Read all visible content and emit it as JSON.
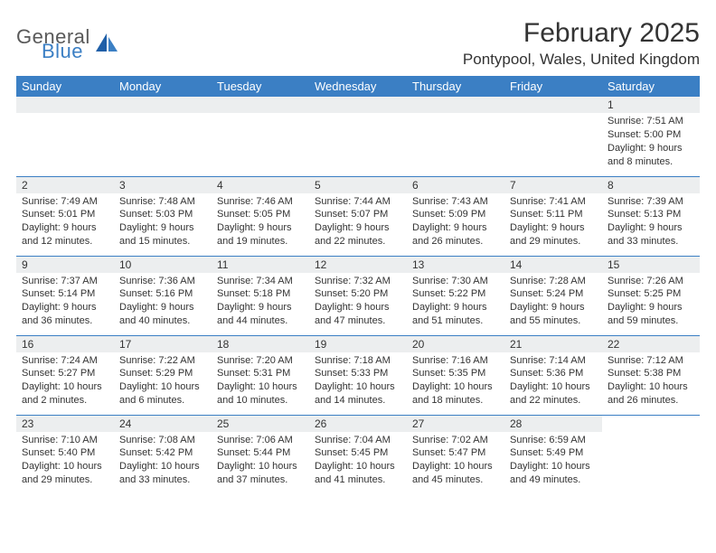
{
  "brand": {
    "top": "General",
    "bottom": "Blue",
    "color_top": "#595959",
    "color_bottom": "#3b7fc4"
  },
  "title": "February 2025",
  "location": "Pontypool, Wales, United Kingdom",
  "colors": {
    "header_bg": "#3b7fc4",
    "header_text": "#ffffff",
    "daynum_bg": "#eceeef",
    "rule": "#3b7fc4",
    "text": "#333333",
    "page_bg": "#ffffff"
  },
  "fonts": {
    "title_size_pt": 30,
    "location_size_pt": 17,
    "th_size_pt": 13,
    "daynum_size_pt": 12,
    "body_size_pt": 11
  },
  "dow": [
    "Sunday",
    "Monday",
    "Tuesday",
    "Wednesday",
    "Thursday",
    "Friday",
    "Saturday"
  ],
  "weeks": [
    [
      null,
      null,
      null,
      null,
      null,
      null,
      {
        "n": "1",
        "sr": "Sunrise: 7:51 AM",
        "ss": "Sunset: 5:00 PM",
        "d1": "Daylight: 9 hours",
        "d2": "and 8 minutes."
      }
    ],
    [
      {
        "n": "2",
        "sr": "Sunrise: 7:49 AM",
        "ss": "Sunset: 5:01 PM",
        "d1": "Daylight: 9 hours",
        "d2": "and 12 minutes."
      },
      {
        "n": "3",
        "sr": "Sunrise: 7:48 AM",
        "ss": "Sunset: 5:03 PM",
        "d1": "Daylight: 9 hours",
        "d2": "and 15 minutes."
      },
      {
        "n": "4",
        "sr": "Sunrise: 7:46 AM",
        "ss": "Sunset: 5:05 PM",
        "d1": "Daylight: 9 hours",
        "d2": "and 19 minutes."
      },
      {
        "n": "5",
        "sr": "Sunrise: 7:44 AM",
        "ss": "Sunset: 5:07 PM",
        "d1": "Daylight: 9 hours",
        "d2": "and 22 minutes."
      },
      {
        "n": "6",
        "sr": "Sunrise: 7:43 AM",
        "ss": "Sunset: 5:09 PM",
        "d1": "Daylight: 9 hours",
        "d2": "and 26 minutes."
      },
      {
        "n": "7",
        "sr": "Sunrise: 7:41 AM",
        "ss": "Sunset: 5:11 PM",
        "d1": "Daylight: 9 hours",
        "d2": "and 29 minutes."
      },
      {
        "n": "8",
        "sr": "Sunrise: 7:39 AM",
        "ss": "Sunset: 5:13 PM",
        "d1": "Daylight: 9 hours",
        "d2": "and 33 minutes."
      }
    ],
    [
      {
        "n": "9",
        "sr": "Sunrise: 7:37 AM",
        "ss": "Sunset: 5:14 PM",
        "d1": "Daylight: 9 hours",
        "d2": "and 36 minutes."
      },
      {
        "n": "10",
        "sr": "Sunrise: 7:36 AM",
        "ss": "Sunset: 5:16 PM",
        "d1": "Daylight: 9 hours",
        "d2": "and 40 minutes."
      },
      {
        "n": "11",
        "sr": "Sunrise: 7:34 AM",
        "ss": "Sunset: 5:18 PM",
        "d1": "Daylight: 9 hours",
        "d2": "and 44 minutes."
      },
      {
        "n": "12",
        "sr": "Sunrise: 7:32 AM",
        "ss": "Sunset: 5:20 PM",
        "d1": "Daylight: 9 hours",
        "d2": "and 47 minutes."
      },
      {
        "n": "13",
        "sr": "Sunrise: 7:30 AM",
        "ss": "Sunset: 5:22 PM",
        "d1": "Daylight: 9 hours",
        "d2": "and 51 minutes."
      },
      {
        "n": "14",
        "sr": "Sunrise: 7:28 AM",
        "ss": "Sunset: 5:24 PM",
        "d1": "Daylight: 9 hours",
        "d2": "and 55 minutes."
      },
      {
        "n": "15",
        "sr": "Sunrise: 7:26 AM",
        "ss": "Sunset: 5:25 PM",
        "d1": "Daylight: 9 hours",
        "d2": "and 59 minutes."
      }
    ],
    [
      {
        "n": "16",
        "sr": "Sunrise: 7:24 AM",
        "ss": "Sunset: 5:27 PM",
        "d1": "Daylight: 10 hours",
        "d2": "and 2 minutes."
      },
      {
        "n": "17",
        "sr": "Sunrise: 7:22 AM",
        "ss": "Sunset: 5:29 PM",
        "d1": "Daylight: 10 hours",
        "d2": "and 6 minutes."
      },
      {
        "n": "18",
        "sr": "Sunrise: 7:20 AM",
        "ss": "Sunset: 5:31 PM",
        "d1": "Daylight: 10 hours",
        "d2": "and 10 minutes."
      },
      {
        "n": "19",
        "sr": "Sunrise: 7:18 AM",
        "ss": "Sunset: 5:33 PM",
        "d1": "Daylight: 10 hours",
        "d2": "and 14 minutes."
      },
      {
        "n": "20",
        "sr": "Sunrise: 7:16 AM",
        "ss": "Sunset: 5:35 PM",
        "d1": "Daylight: 10 hours",
        "d2": "and 18 minutes."
      },
      {
        "n": "21",
        "sr": "Sunrise: 7:14 AM",
        "ss": "Sunset: 5:36 PM",
        "d1": "Daylight: 10 hours",
        "d2": "and 22 minutes."
      },
      {
        "n": "22",
        "sr": "Sunrise: 7:12 AM",
        "ss": "Sunset: 5:38 PM",
        "d1": "Daylight: 10 hours",
        "d2": "and 26 minutes."
      }
    ],
    [
      {
        "n": "23",
        "sr": "Sunrise: 7:10 AM",
        "ss": "Sunset: 5:40 PM",
        "d1": "Daylight: 10 hours",
        "d2": "and 29 minutes."
      },
      {
        "n": "24",
        "sr": "Sunrise: 7:08 AM",
        "ss": "Sunset: 5:42 PM",
        "d1": "Daylight: 10 hours",
        "d2": "and 33 minutes."
      },
      {
        "n": "25",
        "sr": "Sunrise: 7:06 AM",
        "ss": "Sunset: 5:44 PM",
        "d1": "Daylight: 10 hours",
        "d2": "and 37 minutes."
      },
      {
        "n": "26",
        "sr": "Sunrise: 7:04 AM",
        "ss": "Sunset: 5:45 PM",
        "d1": "Daylight: 10 hours",
        "d2": "and 41 minutes."
      },
      {
        "n": "27",
        "sr": "Sunrise: 7:02 AM",
        "ss": "Sunset: 5:47 PM",
        "d1": "Daylight: 10 hours",
        "d2": "and 45 minutes."
      },
      {
        "n": "28",
        "sr": "Sunrise: 6:59 AM",
        "ss": "Sunset: 5:49 PM",
        "d1": "Daylight: 10 hours",
        "d2": "and 49 minutes."
      },
      null
    ]
  ]
}
